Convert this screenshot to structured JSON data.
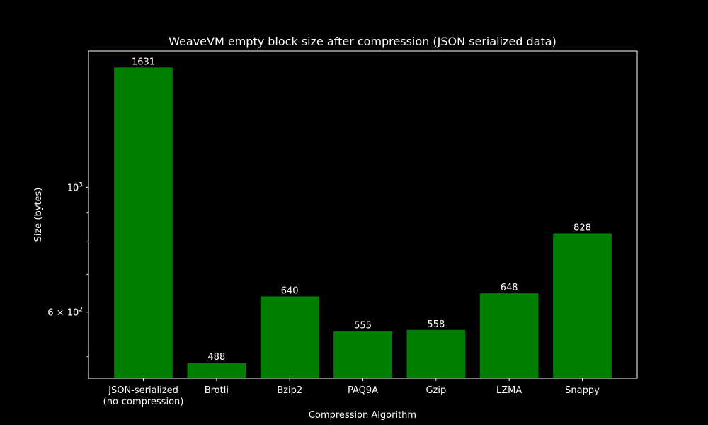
{
  "chart_data": {
    "type": "bar",
    "title": "WeaveVM empty block size after compression (JSON serialized data)",
    "xlabel": "Compression Algorithm",
    "ylabel": "Size (bytes)",
    "yscale": "log",
    "ylim": [
      458,
      1745
    ],
    "categories": [
      [
        "JSON-serialized",
        "(no-compression)"
      ],
      [
        "Brotli"
      ],
      [
        "Bzip2"
      ],
      [
        "PAQ9A"
      ],
      [
        "Gzip"
      ],
      [
        "LZMA"
      ],
      [
        "Snappy"
      ]
    ],
    "values": [
      1631,
      488,
      640,
      555,
      558,
      648,
      828
    ],
    "data_labels": [
      "1631",
      "488",
      "640",
      "555",
      "558",
      "648",
      "828"
    ],
    "y_major_ticks": [
      {
        "value": 600,
        "base": "6 × 10",
        "exp": "2"
      },
      {
        "value": 1000,
        "base": "10",
        "exp": "3"
      }
    ],
    "y_minor_ticks": [
      500,
      700,
      800,
      900
    ],
    "grid": false,
    "bar_color": "#008000",
    "background_color": "#000000",
    "foreground_color": "#ffffff"
  }
}
